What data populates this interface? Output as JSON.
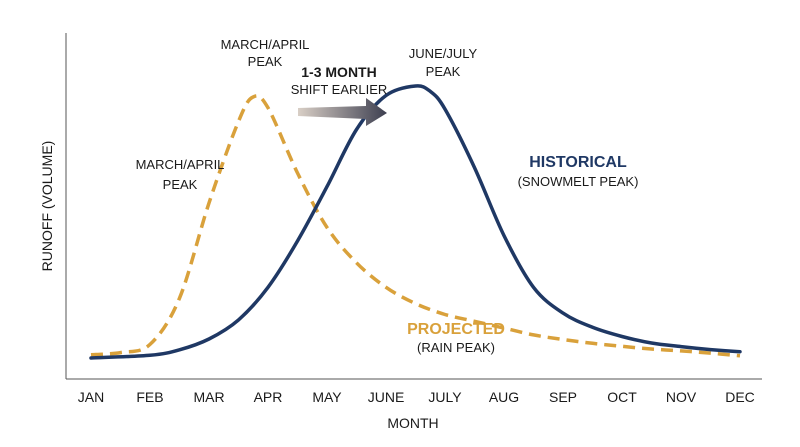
{
  "chart_data": {
    "type": "line",
    "xlabel": "MONTH",
    "ylabel": "RUNOFF (VOLUME)",
    "categories": [
      "JAN",
      "FEB",
      "MAR",
      "APR",
      "MAY",
      "JUNE",
      "JULY",
      "AUG",
      "SEP",
      "OCT",
      "NOV",
      "DEC"
    ],
    "ylim": [
      0,
      100
    ],
    "grid": false,
    "series": [
      {
        "name": "HISTORICAL",
        "sublabel": "(SNOWMELT PEAK)",
        "style": "solid",
        "color": "#1f3864",
        "x": [
          0,
          1,
          1.5,
          2,
          2.5,
          3,
          3.5,
          4,
          4.5,
          5,
          5.5,
          5.75,
          6,
          6.5,
          7,
          7.5,
          8,
          8.5,
          9,
          9.5,
          10,
          10.5,
          11
        ],
        "y": [
          0,
          1,
          3,
          7,
          14,
          26,
          43,
          63,
          84,
          96.5,
          100,
          98,
          91.5,
          70,
          45,
          26,
          16.5,
          11.3,
          7.9,
          5.5,
          4.2,
          3.1,
          2.3
        ]
      },
      {
        "name": "PROJECTED",
        "sublabel": "(RAIN PEAK)",
        "style": "dashed",
        "color": "#d9a13b",
        "x": [
          0,
          0.5,
          1,
          1.5,
          2,
          2.5,
          2.75,
          3,
          3.5,
          4,
          4.5,
          5,
          5.5,
          6,
          6.5,
          7,
          7.5,
          8,
          8.5,
          9,
          9.5,
          10,
          10.5,
          11
        ],
        "y": [
          1.2,
          2,
          5,
          22,
          57,
          87,
          96,
          92,
          68,
          48,
          35,
          26,
          20,
          16,
          13.5,
          11,
          8.5,
          6.8,
          5.4,
          4.3,
          3.3,
          2.6,
          1.8,
          0.8
        ]
      }
    ],
    "annotations": [
      {
        "id": "proj-peak",
        "lines": [
          "MARCH/APRIL",
          "PEAK"
        ]
      },
      {
        "id": "side-peak",
        "lines": [
          "MARCH/APRIL",
          "PEAK"
        ]
      },
      {
        "id": "shift",
        "bold": "1-3 MONTH",
        "text": "SHIFT EARLIER"
      },
      {
        "id": "hist-peak",
        "lines": [
          "JUNE/JULY",
          "PEAK"
        ]
      }
    ],
    "arrow_color": "#3d3f50"
  }
}
